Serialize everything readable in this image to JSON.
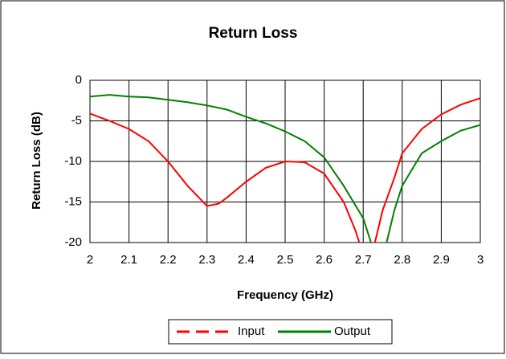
{
  "chart_data": {
    "type": "line",
    "title": "Return Loss",
    "x_label": "Frequency (GHz)",
    "y_label": "Return Loss (dB)",
    "xlim": [
      2,
      3
    ],
    "xticks": [
      2,
      2.1,
      2.2,
      2.3,
      2.4,
      2.5,
      2.6,
      2.7,
      2.8,
      2.9,
      3
    ],
    "ylim": [
      -20,
      0
    ],
    "yticks": [
      0,
      -5,
      -10,
      -15,
      -20
    ],
    "grid": true,
    "legend": "bottom",
    "series": [
      {
        "name": "Input",
        "color": "#ff0000",
        "dash": true,
        "x": [
          2.0,
          2.05,
          2.1,
          2.15,
          2.2,
          2.25,
          2.3,
          2.33,
          2.35,
          2.4,
          2.45,
          2.5,
          2.55,
          2.6,
          2.65,
          2.68,
          2.69,
          2.71,
          2.73,
          2.75,
          2.78,
          2.8,
          2.85,
          2.9,
          2.95,
          3.0
        ],
        "values": [
          -4.1,
          -5,
          -6,
          -7.5,
          -10,
          -13,
          -15.5,
          -15.2,
          -14.5,
          -12.5,
          -10.8,
          -10,
          -10.1,
          -11.5,
          -15,
          -18.5,
          -20,
          null,
          -20,
          -16,
          -12,
          -9,
          -6,
          -4.2,
          -3,
          -2.2
        ]
      },
      {
        "name": "Output",
        "color": "#008000",
        "dash": false,
        "x": [
          2.0,
          2.05,
          2.1,
          2.15,
          2.2,
          2.25,
          2.3,
          2.35,
          2.4,
          2.45,
          2.5,
          2.55,
          2.6,
          2.65,
          2.7,
          2.72,
          2.74,
          2.76,
          2.78,
          2.8,
          2.85,
          2.9,
          2.95,
          3.0
        ],
        "values": [
          -2,
          -1.8,
          -2,
          -2.1,
          -2.4,
          -2.7,
          -3.1,
          -3.6,
          -4.5,
          -5.3,
          -6.3,
          -7.5,
          -9.5,
          -13,
          -17,
          -20,
          null,
          -20,
          -16,
          -13,
          -9,
          -7.5,
          -6.2,
          -5.5
        ]
      }
    ]
  }
}
